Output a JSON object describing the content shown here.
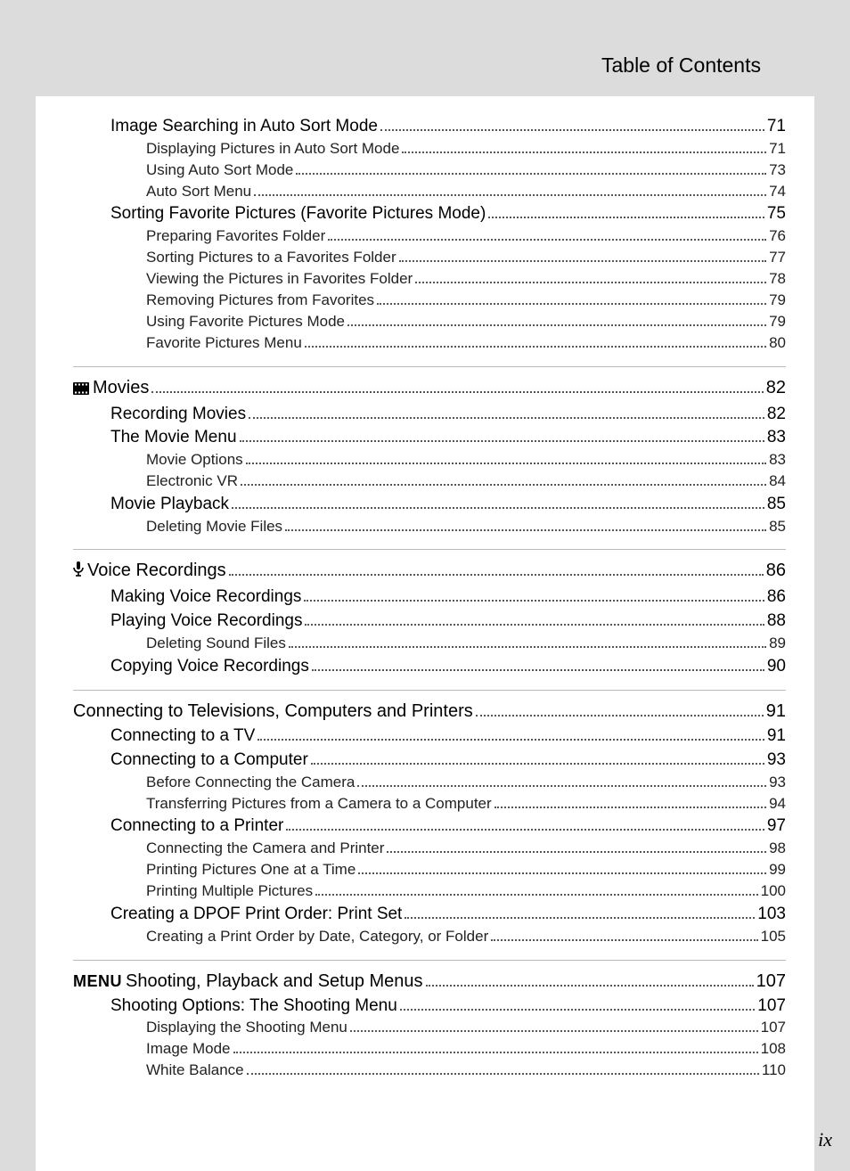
{
  "header": {
    "title": "Table of Contents"
  },
  "page_number": "ix",
  "menu_prefix": "MENU",
  "sections": [
    {
      "icon": null,
      "title": null,
      "rule_before": false,
      "items": [
        {
          "level": "heading",
          "label": "Image Searching in Auto Sort Mode",
          "page": "71"
        },
        {
          "level": "sub",
          "label": "Displaying Pictures in Auto Sort Mode",
          "page": "71"
        },
        {
          "level": "sub",
          "label": "Using Auto Sort Mode",
          "page": "73"
        },
        {
          "level": "sub",
          "label": "Auto Sort Menu",
          "page": "74"
        },
        {
          "level": "heading",
          "label": "Sorting Favorite Pictures (Favorite Pictures Mode)",
          "page": "75"
        },
        {
          "level": "sub",
          "label": "Preparing Favorites Folder",
          "page": "76"
        },
        {
          "level": "sub",
          "label": "Sorting Pictures to a Favorites Folder",
          "page": "77"
        },
        {
          "level": "sub",
          "label": "Viewing the Pictures in Favorites Folder",
          "page": "78"
        },
        {
          "level": "sub",
          "label": "Removing Pictures from Favorites",
          "page": "79"
        },
        {
          "level": "sub",
          "label": "Using Favorite Pictures Mode",
          "page": "79"
        },
        {
          "level": "sub",
          "label": "Favorite Pictures Menu",
          "page": "80"
        }
      ]
    },
    {
      "icon": "movie",
      "title": "Movies",
      "title_page": "82",
      "rule_before": true,
      "items": [
        {
          "level": "heading",
          "label": "Recording Movies",
          "page": "82"
        },
        {
          "level": "heading",
          "label": "The Movie Menu",
          "page": "83"
        },
        {
          "level": "sub",
          "label": "Movie Options",
          "page": "83"
        },
        {
          "level": "sub",
          "label": "Electronic VR",
          "page": "84"
        },
        {
          "level": "heading",
          "label": "Movie Playback",
          "page": "85"
        },
        {
          "level": "sub",
          "label": "Deleting Movie Files",
          "page": "85"
        }
      ]
    },
    {
      "icon": "mic",
      "title": "Voice Recordings",
      "title_page": "86",
      "rule_before": true,
      "items": [
        {
          "level": "heading",
          "label": "Making Voice Recordings",
          "page": "86"
        },
        {
          "level": "heading",
          "label": "Playing Voice Recordings",
          "page": "88"
        },
        {
          "level": "sub",
          "label": "Deleting Sound Files",
          "page": "89"
        },
        {
          "level": "heading",
          "label": "Copying Voice Recordings",
          "page": "90"
        }
      ]
    },
    {
      "icon": null,
      "title": "Connecting to Televisions, Computers and Printers",
      "title_page": "91",
      "rule_before": true,
      "items": [
        {
          "level": "heading",
          "label": "Connecting to a TV",
          "page": "91"
        },
        {
          "level": "heading",
          "label": "Connecting to a Computer",
          "page": "93"
        },
        {
          "level": "sub",
          "label": "Before Connecting the Camera",
          "page": "93"
        },
        {
          "level": "sub",
          "label": "Transferring Pictures from a Camera to a Computer",
          "page": "94"
        },
        {
          "level": "heading",
          "label": "Connecting to a Printer",
          "page": "97"
        },
        {
          "level": "sub",
          "label": "Connecting the Camera and Printer",
          "page": "98"
        },
        {
          "level": "sub",
          "label": "Printing Pictures One at a Time",
          "page": "99"
        },
        {
          "level": "sub",
          "label": "Printing Multiple Pictures",
          "page": "100"
        },
        {
          "level": "heading",
          "label": "Creating a DPOF Print Order: Print Set",
          "page": "103"
        },
        {
          "level": "sub",
          "label": "Creating a Print Order by Date, Category, or Folder",
          "page": "105"
        }
      ]
    },
    {
      "icon": "menu",
      "title": "Shooting, Playback and Setup Menus",
      "title_page": "107",
      "rule_before": true,
      "items": [
        {
          "level": "heading",
          "label": "Shooting Options: The Shooting Menu",
          "page": "107"
        },
        {
          "level": "sub",
          "label": "Displaying the Shooting Menu",
          "page": "107"
        },
        {
          "level": "sub",
          "label": "Image Mode",
          "page": "108"
        },
        {
          "level": "sub",
          "label": "White Balance",
          "page": "110"
        }
      ]
    }
  ]
}
